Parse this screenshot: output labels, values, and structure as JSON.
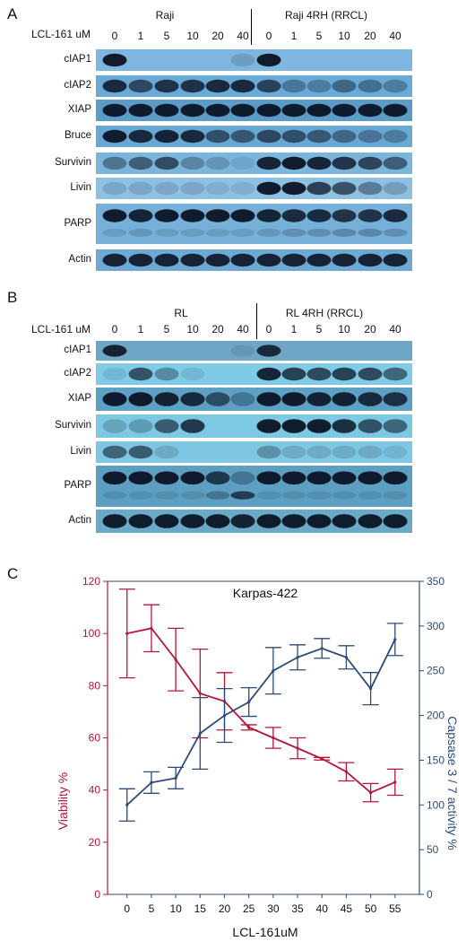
{
  "panels": {
    "A": {
      "label": "A",
      "dose_label": "LCL-161 uM",
      "group_left": "Raji",
      "group_right": "Raji 4RH (RRCL)",
      "doses": [
        "0",
        "1",
        "5",
        "10",
        "20",
        "40",
        "0",
        "1",
        "5",
        "10",
        "20",
        "40"
      ],
      "rows": [
        {
          "label": "cIAP1",
          "bg": "#7fb6df",
          "bands": [
            0.95,
            0,
            0,
            0,
            0,
            0.15,
            0.95,
            0,
            0,
            0,
            0,
            0
          ]
        },
        {
          "label": "cIAP2",
          "bg": "#6aaad6",
          "bands": [
            0.85,
            0.65,
            0.8,
            0.8,
            0.85,
            0.85,
            0.7,
            0.35,
            0.3,
            0.45,
            0.4,
            0.3
          ]
        },
        {
          "label": "XIAP",
          "bg": "#5b9bc8",
          "bands": [
            0.95,
            0.95,
            0.95,
            0.95,
            0.95,
            0.95,
            0.95,
            0.95,
            0.95,
            0.95,
            0.95,
            0.95
          ]
        },
        {
          "label": "Bruce",
          "bg": "#6aa8d4",
          "bands": [
            0.95,
            0.85,
            0.9,
            0.85,
            0.6,
            0.55,
            0.65,
            0.6,
            0.55,
            0.45,
            0.35,
            0.3
          ]
        },
        {
          "label": "Survivin",
          "bg": "#7cb5dc",
          "bands": [
            0.4,
            0.55,
            0.65,
            0.3,
            0.2,
            0.1,
            0.9,
            0.95,
            0.9,
            0.8,
            0.7,
            0.55
          ]
        },
        {
          "label": "Livin",
          "bg": "#8fc0e2",
          "bands": [
            0.15,
            0.15,
            0.15,
            0.15,
            0.1,
            0.1,
            0.95,
            0.95,
            0.75,
            0.65,
            0.4,
            0.2
          ]
        },
        {
          "label": "PARP",
          "bg": "#76b0d9",
          "bands": [
            0.95,
            0.9,
            0.95,
            0.95,
            0.95,
            0.95,
            0.9,
            0.85,
            0.85,
            0.8,
            0.8,
            0.85
          ]
        },
        {
          "label": "Actin",
          "bg": "#6ea9d3",
          "bands": [
            0.9,
            0.9,
            0.9,
            0.9,
            0.9,
            0.9,
            0.9,
            0.9,
            0.9,
            0.9,
            0.9,
            0.9
          ]
        }
      ]
    },
    "B": {
      "label": "B",
      "dose_label": "LCL-161 uM",
      "group_left": "RL",
      "group_right": "RL 4RH (RRCL)",
      "doses": [
        "0",
        "1",
        "5",
        "10",
        "20",
        "40",
        "0",
        "1",
        "5",
        "10",
        "20",
        "40"
      ],
      "rows": [
        {
          "label": "cIAP1",
          "bg": "#6fa6c6",
          "bands": [
            0.9,
            0,
            0,
            0,
            0,
            0.1,
            0.85,
            0,
            0,
            0,
            0,
            0
          ]
        },
        {
          "label": "cIAP2",
          "bg": "#7fcbe6",
          "bands": [
            0.1,
            0.65,
            0.35,
            0.1,
            0,
            0,
            0.9,
            0.75,
            0.7,
            0.75,
            0.7,
            0.55
          ]
        },
        {
          "label": "XIAP",
          "bg": "#5ca0c4",
          "bands": [
            0.95,
            0.95,
            0.9,
            0.85,
            0.6,
            0.3,
            0.95,
            0.95,
            0.9,
            0.9,
            0.85,
            0.8
          ]
        },
        {
          "label": "Survivin",
          "bg": "#7dc9e4",
          "bands": [
            0.2,
            0.25,
            0.6,
            0.8,
            0,
            0,
            0.95,
            0.95,
            0.95,
            0.85,
            0.65,
            0.55
          ]
        },
        {
          "label": "Livin",
          "bg": "#7ec6e2",
          "bands": [
            0.55,
            0.6,
            0.15,
            0,
            0,
            0,
            0.3,
            0.15,
            0.15,
            0.15,
            0.15,
            0.1
          ]
        },
        {
          "label": "PARP",
          "bg": "#5d9fc2",
          "bands": [
            0.95,
            0.95,
            0.95,
            0.95,
            0.75,
            0.3,
            0.95,
            0.95,
            0.95,
            0.95,
            0.95,
            0.95
          ]
        },
        {
          "label": "Actin",
          "bg": "#6aa9c8",
          "bands": [
            0.95,
            0.95,
            0.95,
            0.95,
            0.95,
            0.9,
            0.95,
            0.95,
            0.95,
            0.95,
            0.95,
            0.95
          ]
        }
      ]
    },
    "C": {
      "label": "C"
    }
  },
  "chart_data": {
    "type": "line",
    "title": "Karpas-422",
    "xlabel": "LCL-161uM",
    "ylabel_left": "Viability %",
    "ylabel_right": "Capsase 3 / 7 activity %",
    "x": [
      0,
      5,
      10,
      15,
      20,
      25,
      30,
      35,
      40,
      45,
      50,
      55
    ],
    "xticks": [
      "0",
      "5",
      "10",
      "15",
      "20",
      "25",
      "30",
      "35",
      "40",
      "45",
      "50",
      "55"
    ],
    "ylim_left": [
      0,
      120
    ],
    "yticks_left": [
      "0",
      "20",
      "40",
      "60",
      "80",
      "100",
      "120"
    ],
    "ylim_right": [
      0,
      350
    ],
    "yticks_right": [
      "0",
      "50",
      "100",
      "150",
      "200",
      "250",
      "300",
      "350"
    ],
    "grid": false,
    "series": [
      {
        "axis": "left",
        "color": "#b5153a",
        "values": [
          100,
          102,
          90,
          77,
          74,
          64,
          60,
          56,
          52,
          47,
          39,
          43
        ],
        "errors": [
          17,
          9,
          12,
          17,
          11,
          1,
          4,
          4,
          0.5,
          3.5,
          3.5,
          5
        ]
      },
      {
        "axis": "right",
        "color": "#2d4a7a",
        "values": [
          100,
          125,
          130,
          180,
          200,
          215,
          250,
          265,
          275,
          265,
          230,
          285
        ],
        "errors": [
          18,
          12,
          12,
          40,
          30,
          16,
          26,
          14,
          11,
          13,
          18,
          18
        ]
      }
    ]
  }
}
